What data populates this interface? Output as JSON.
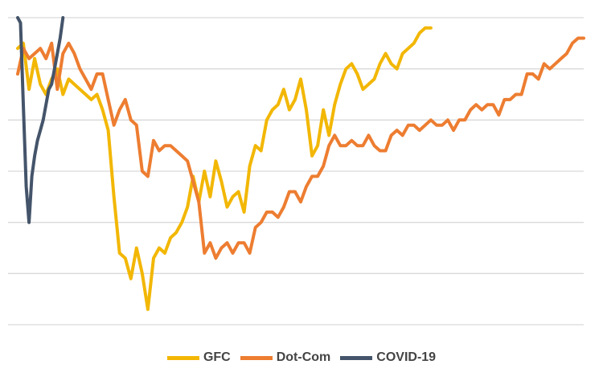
{
  "chart_data": {
    "type": "line",
    "title": "",
    "xlabel": "",
    "ylabel": "",
    "grid": true,
    "legend_position": "bottom",
    "xlim": [
      0,
      100
    ],
    "ylim": [
      -50,
      10
    ],
    "yticks": [
      -50,
      -40,
      -30,
      -20,
      -10,
      0,
      10
    ],
    "series": [
      {
        "name": "GFC",
        "color": "#F2B705",
        "x": [
          0,
          1,
          2,
          3,
          4,
          5,
          6,
          7,
          8,
          9,
          10,
          11,
          12,
          13,
          14,
          15,
          16,
          17,
          18,
          19,
          20,
          21,
          22,
          23,
          24,
          25,
          26,
          27,
          28,
          29,
          30,
          31,
          32,
          33,
          34,
          35,
          36,
          37,
          38,
          39,
          40,
          41,
          42,
          43,
          44,
          45,
          46,
          47,
          48,
          49,
          50,
          51,
          52,
          53,
          54,
          55,
          56,
          57,
          58,
          59,
          60,
          61,
          62,
          63,
          64,
          65,
          66,
          67,
          68,
          69,
          70,
          71,
          72,
          73
        ],
        "values": [
          4,
          5,
          -4,
          2,
          -3,
          -5,
          -2,
          0,
          -5,
          -2,
          -3,
          -4,
          -5,
          -6,
          -5,
          -8,
          -12,
          -25,
          -36,
          -37,
          -41,
          -35,
          -40,
          -47,
          -37,
          -35,
          -36,
          -33,
          -32,
          -30,
          -27,
          -21,
          -26,
          -20,
          -25,
          -18,
          -22,
          -27,
          -25,
          -24,
          -28,
          -19,
          -15,
          -16,
          -10,
          -8,
          -7,
          -4,
          -8,
          -6,
          -2,
          -8,
          -17,
          -15,
          -8,
          -13,
          -7,
          -3,
          0,
          1,
          -1,
          -4,
          -3,
          -2,
          1,
          3,
          1,
          0,
          3,
          4,
          5,
          7,
          8,
          8
        ]
      },
      {
        "name": "Dot-Com",
        "color": "#ED7D31",
        "x": [
          0,
          1,
          2,
          3,
          4,
          5,
          6,
          7,
          8,
          9,
          10,
          11,
          12,
          13,
          14,
          15,
          16,
          17,
          18,
          19,
          20,
          21,
          22,
          23,
          24,
          25,
          26,
          27,
          28,
          29,
          30,
          31,
          32,
          33,
          34,
          35,
          36,
          37,
          38,
          39,
          40,
          41,
          42,
          43,
          44,
          45,
          46,
          47,
          48,
          49,
          50,
          51,
          52,
          53,
          54,
          55,
          56,
          57,
          58,
          59,
          60,
          61,
          62,
          63,
          64,
          65,
          66,
          67,
          68,
          69,
          70,
          71,
          72,
          73,
          74,
          75,
          76,
          77,
          78,
          79,
          80,
          81,
          82,
          83,
          84,
          85,
          86,
          87,
          88,
          89,
          90,
          91,
          92,
          93,
          94,
          95,
          96,
          97,
          98,
          99,
          100
        ],
        "values": [
          -1,
          4,
          2,
          3,
          4,
          2,
          5,
          -4,
          3,
          5,
          3,
          0,
          -2,
          -4,
          -1,
          -1,
          -6,
          -11,
          -8,
          -6,
          -10,
          -11,
          -20,
          -21,
          -14,
          -16,
          -15,
          -15,
          -16,
          -17,
          -18,
          -22,
          -26,
          -36,
          -34,
          -37,
          -35,
          -34,
          -36,
          -34,
          -34,
          -36,
          -31,
          -30,
          -28,
          -28,
          -29,
          -27,
          -24,
          -24,
          -26,
          -23,
          -21,
          -21,
          -19,
          -15,
          -13,
          -15,
          -15,
          -14,
          -15,
          -15,
          -13,
          -15,
          -16,
          -16,
          -13,
          -12,
          -13,
          -11,
          -11,
          -12,
          -11,
          -10,
          -11,
          -11,
          -10,
          -12,
          -10,
          -10,
          -8,
          -7,
          -8,
          -7,
          -7,
          -9,
          -6,
          -6,
          -5,
          -5,
          -1,
          -1,
          -2,
          1,
          0,
          1,
          2,
          3,
          5,
          6,
          6
        ]
      },
      {
        "name": "COVID-19",
        "color": "#44546A",
        "x": [
          0,
          0.5,
          1,
          1.5,
          2,
          2.5,
          3,
          3.5,
          4,
          4.5,
          5,
          5.5,
          6,
          6.5,
          7,
          7.5,
          8
        ],
        "values": [
          10,
          9,
          -7,
          -23,
          -30,
          -21,
          -17,
          -14,
          -12,
          -10,
          -7,
          -4,
          -3,
          0,
          3,
          6,
          10
        ]
      }
    ]
  }
}
